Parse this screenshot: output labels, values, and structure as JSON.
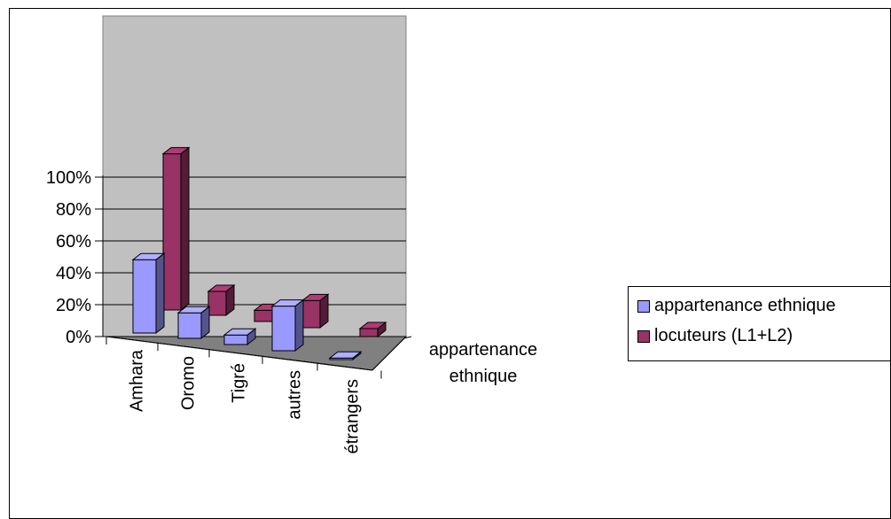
{
  "chart_data": {
    "type": "bar",
    "categories": [
      "Amhara",
      "Oromo",
      "Tigré",
      "autres",
      "étrangers"
    ],
    "series": [
      {
        "name": "appartenance ethnique",
        "values": [
          46,
          16,
          6,
          28,
          1
        ],
        "color": "#9999FF"
      },
      {
        "name": "locuteurs (L1+L2)",
        "values": [
          98,
          15,
          7,
          17,
          5
        ],
        "color": "#993366"
      }
    ],
    "depth_axis_label": "appartenance ethnique",
    "y_ticks": [
      "0%",
      "20%",
      "40%",
      "60%",
      "80%",
      "100%"
    ],
    "ylim": [
      0,
      100
    ],
    "grid": true,
    "legend_position": "right",
    "three_d": true
  }
}
